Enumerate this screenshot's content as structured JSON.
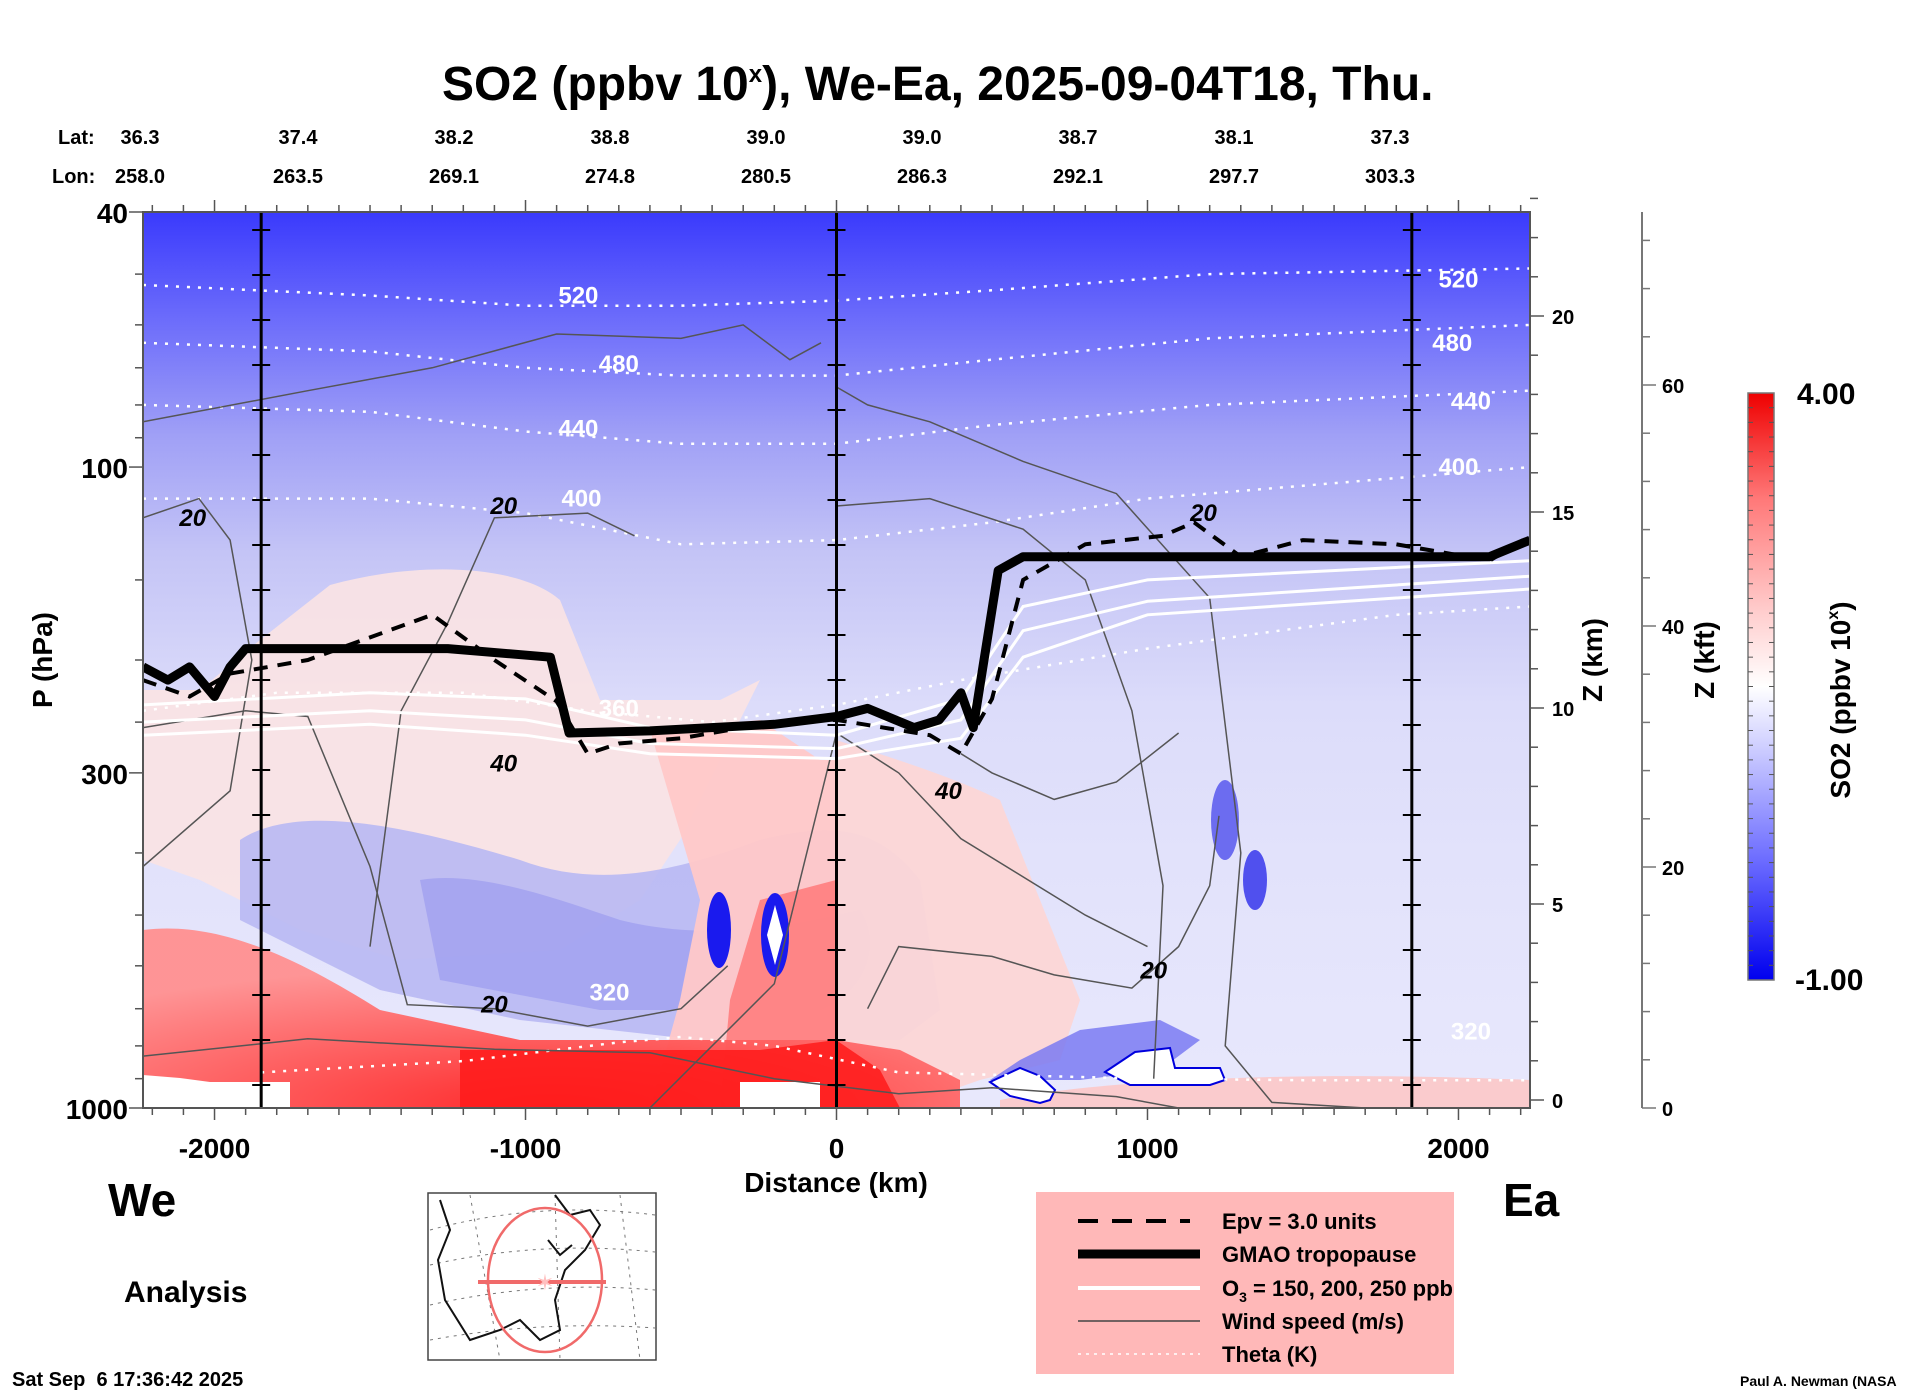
{
  "chart_data": {
    "type": "heatmap",
    "title": "SO2 (ppbv 10",
    "title_superscript": "x",
    "title_suffix": "), We-Ea, 2025-09-04T18, Thu.",
    "xlabel": "Distance (km)",
    "ylabel": "P (hPa)",
    "y2label": "Z (km)",
    "y3label": "Z (kft)",
    "xlim": [
      -2230,
      2230
    ],
    "ylim_hpa": [
      1000,
      40
    ],
    "y_scale": "log",
    "x_ticks": [
      -2000,
      -1000,
      0,
      1000,
      2000
    ],
    "x_tick_labels": [
      "-2000",
      "-1000",
      "0",
      "1000",
      "2000"
    ],
    "y_ticks_hpa": [
      40,
      100,
      300,
      1000
    ],
    "y_tick_labels": [
      "40",
      "100",
      "300",
      "1000"
    ],
    "z_km_ticks": [
      0,
      5,
      10,
      15,
      20
    ],
    "z_kft_ticks": [
      0,
      20,
      40,
      60
    ],
    "lat_label": "Lat:",
    "lon_label": "Lon:",
    "lat": [
      "36.3",
      "37.4",
      "38.2",
      "38.8",
      "39.0",
      "39.0",
      "38.7",
      "38.1",
      "37.3"
    ],
    "lon": [
      "258.0",
      "263.5",
      "269.1",
      "274.8",
      "280.5",
      "286.3",
      "292.1",
      "297.7",
      "303.3"
    ],
    "vertical_marker_lines_km": [
      -1850,
      0,
      1850
    ],
    "colorbar": {
      "label": "SO2 (ppbv 10",
      "label_superscript": "x",
      "label_suffix": ")",
      "min": -1.0,
      "max": 4.0,
      "min_label": "-1.00",
      "max_label": "4.00",
      "colors": [
        "#0000ee",
        "#ffffff",
        "#ee0000"
      ]
    },
    "theta_contours_K": [
      {
        "value": 320,
        "label": "320",
        "points": [
          [
            -1850,
            880
          ],
          [
            -1200,
            845
          ],
          [
            -700,
            790
          ],
          [
            -500,
            775
          ],
          [
            -200,
            800
          ],
          [
            200,
            880
          ],
          [
            1000,
            900
          ],
          [
            1500,
            905
          ],
          [
            2230,
            905
          ]
        ]
      },
      {
        "value": 360,
        "label": "360",
        "points": [
          [
            -2230,
            240
          ],
          [
            -1800,
            225
          ],
          [
            -1200,
            225
          ],
          [
            -800,
            240
          ],
          [
            -400,
            250
          ],
          [
            0,
            235
          ],
          [
            400,
            215
          ],
          [
            1000,
            192
          ],
          [
            1800,
            170
          ],
          [
            2230,
            165
          ]
        ]
      },
      {
        "value": 400,
        "label": "400",
        "points": [
          [
            -2230,
            112
          ],
          [
            -1500,
            112
          ],
          [
            -1000,
            118
          ],
          [
            -500,
            132
          ],
          [
            0,
            130
          ],
          [
            500,
            122
          ],
          [
            1000,
            112
          ],
          [
            1700,
            105
          ],
          [
            2230,
            100
          ]
        ]
      },
      {
        "value": 440,
        "label": "440",
        "points": [
          [
            -2230,
            80
          ],
          [
            -1500,
            82
          ],
          [
            -1000,
            88
          ],
          [
            -500,
            92
          ],
          [
            0,
            92
          ],
          [
            500,
            86
          ],
          [
            1200,
            80
          ],
          [
            2230,
            76
          ]
        ]
      },
      {
        "value": 480,
        "label": "480",
        "points": [
          [
            -2230,
            64
          ],
          [
            -1500,
            66
          ],
          [
            -1000,
            70
          ],
          [
            -500,
            72
          ],
          [
            0,
            72
          ],
          [
            500,
            68
          ],
          [
            1200,
            63
          ],
          [
            2230,
            60
          ]
        ]
      },
      {
        "value": 520,
        "label": "520",
        "points": [
          [
            -2230,
            52
          ],
          [
            -1500,
            54
          ],
          [
            -1000,
            56
          ],
          [
            -500,
            56
          ],
          [
            0,
            55
          ],
          [
            500,
            53
          ],
          [
            1200,
            50
          ],
          [
            2230,
            49
          ]
        ]
      }
    ],
    "theta_label_positions": [
      {
        "label": "520",
        "x": -830,
        "p": 54
      },
      {
        "label": "480",
        "x": -700,
        "p": 69
      },
      {
        "label": "440",
        "x": -830,
        "p": 87
      },
      {
        "label": "400",
        "x": -820,
        "p": 112
      },
      {
        "label": "360",
        "x": -700,
        "p": 238
      },
      {
        "label": "320",
        "x": -730,
        "p": 660
      },
      {
        "label": "520",
        "x": 2000,
        "p": 51
      },
      {
        "label": "480",
        "x": 1980,
        "p": 64
      },
      {
        "label": "440",
        "x": 2040,
        "p": 79
      },
      {
        "label": "400",
        "x": 2000,
        "p": 100
      },
      {
        "label": "320",
        "x": 2040,
        "p": 760
      }
    ],
    "tropopause_hpa": [
      [
        -2230,
        205
      ],
      [
        -2150,
        215
      ],
      [
        -2080,
        205
      ],
      [
        -2000,
        228
      ],
      [
        -1950,
        205
      ],
      [
        -1900,
        192
      ],
      [
        -1250,
        192
      ],
      [
        -920,
        198
      ],
      [
        -860,
        260
      ],
      [
        -600,
        258
      ],
      [
        -200,
        252
      ],
      [
        0,
        245
      ],
      [
        100,
        238
      ],
      [
        250,
        255
      ],
      [
        330,
        248
      ],
      [
        400,
        225
      ],
      [
        440,
        255
      ],
      [
        520,
        145
      ],
      [
        600,
        138
      ],
      [
        2100,
        138
      ],
      [
        2230,
        130
      ]
    ],
    "epv_3_hpa": [
      [
        -2230,
        215
      ],
      [
        -2080,
        228
      ],
      [
        -1950,
        210
      ],
      [
        -1700,
        200
      ],
      [
        -1300,
        170
      ],
      [
        -1100,
        200
      ],
      [
        -900,
        232
      ],
      [
        -800,
        280
      ],
      [
        -700,
        270
      ],
      [
        -500,
        265
      ],
      [
        -200,
        250
      ],
      [
        0,
        248
      ],
      [
        300,
        262
      ],
      [
        400,
        280
      ],
      [
        500,
        230
      ],
      [
        600,
        150
      ],
      [
        800,
        132
      ],
      [
        1050,
        128
      ],
      [
        1150,
        122
      ],
      [
        1300,
        138
      ],
      [
        1500,
        130
      ],
      [
        1800,
        132
      ],
      [
        2100,
        140
      ],
      [
        2230,
        128
      ]
    ],
    "ozone_150_200_250_hpa": [
      [
        [
          -2230,
          235
        ],
        [
          -1500,
          225
        ],
        [
          -1000,
          230
        ],
        [
          -600,
          255
        ],
        [
          0,
          262
        ],
        [
          400,
          230
        ],
        [
          600,
          165
        ],
        [
          1000,
          150
        ],
        [
          2230,
          140
        ]
      ],
      [
        [
          -2230,
          250
        ],
        [
          -1500,
          240
        ],
        [
          -1000,
          248
        ],
        [
          -600,
          270
        ],
        [
          0,
          275
        ],
        [
          400,
          248
        ],
        [
          600,
          180
        ],
        [
          1000,
          162
        ],
        [
          2230,
          148
        ]
      ],
      [
        [
          -2230,
          262
        ],
        [
          -1500,
          252
        ],
        [
          -1000,
          262
        ],
        [
          -600,
          280
        ],
        [
          0,
          285
        ],
        [
          400,
          265
        ],
        [
          600,
          198
        ],
        [
          1000,
          170
        ],
        [
          2230,
          155
        ]
      ]
    ],
    "wind_speed_labels": [
      {
        "label": "20",
        "x": -2070,
        "p": 120
      },
      {
        "label": "20",
        "x": -1070,
        "p": 115
      },
      {
        "label": "40",
        "x": -1070,
        "p": 290
      },
      {
        "label": "20",
        "x": -1100,
        "p": 690
      },
      {
        "label": "20",
        "x": 1180,
        "p": 118
      },
      {
        "label": "40",
        "x": 360,
        "p": 320
      },
      {
        "label": "20",
        "x": 1020,
        "p": 610
      }
    ],
    "legend": [
      {
        "style": "dashed",
        "label": "Epv = 3.0 units"
      },
      {
        "style": "thick",
        "label": "GMAO tropopause"
      },
      {
        "style": "white",
        "label_prefix": "O",
        "label_sub": "3",
        "label_suffix": " = 150, 200, 250 ppb"
      },
      {
        "style": "thin",
        "label": "Wind speed (m/s)"
      },
      {
        "style": "dotted",
        "label": "Theta (K)"
      }
    ],
    "legend_placement": "bottom-center"
  },
  "labels": {
    "west": "We",
    "east": "Ea",
    "analysis": "Analysis",
    "timestamp": "Sat Sep  6 17:36:42 2025",
    "credit": "Paul A. Newman (NASA"
  },
  "colors": {
    "legend_bg": "#ffb8b8",
    "map_circle": "#f06a6a"
  }
}
